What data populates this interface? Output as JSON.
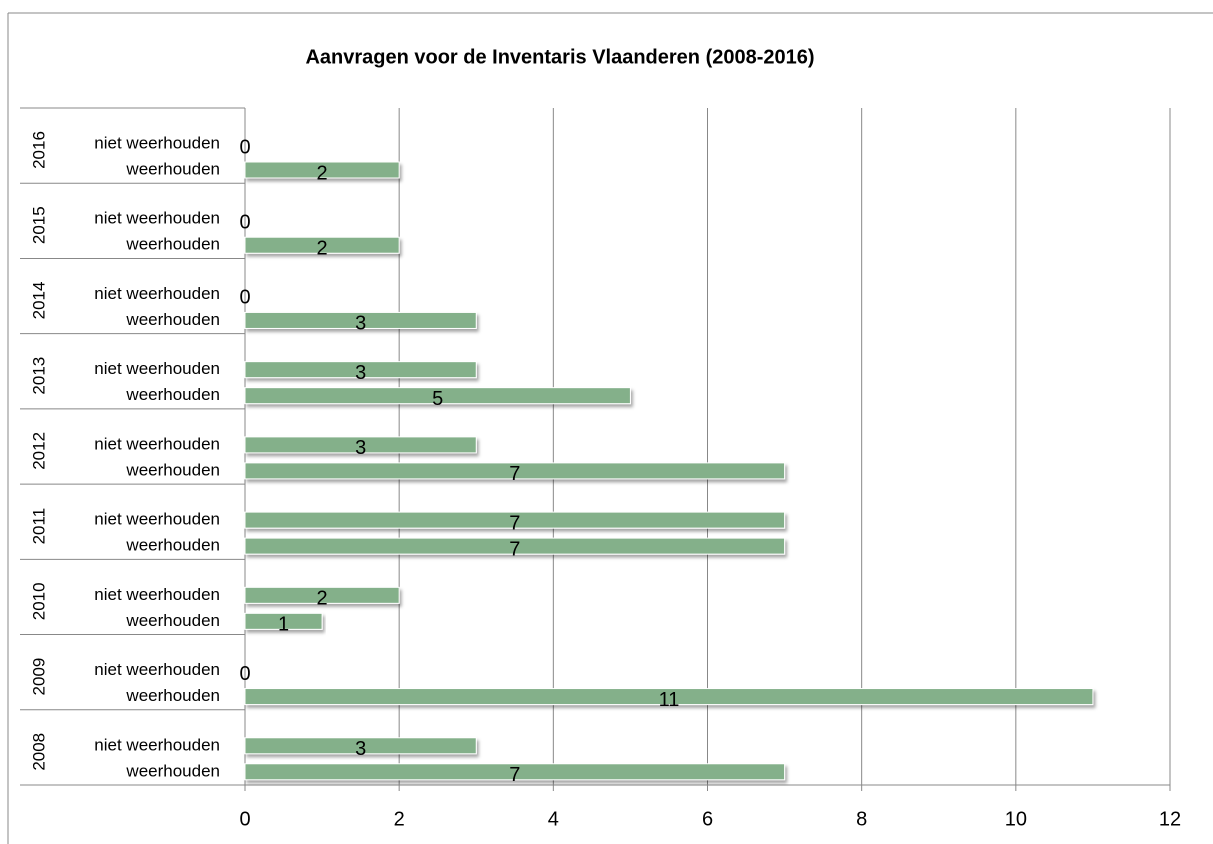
{
  "chart_data": {
    "type": "bar",
    "orientation": "horizontal",
    "title": "Aanvragen voor de Inventaris Vlaanderen (2008-2016)",
    "color": "#84b08a",
    "groups": [
      {
        "label": "2016",
        "categories": [
          "niet weerhouden",
          "weerhouden"
        ],
        "values": [
          0,
          2
        ]
      },
      {
        "label": "2015",
        "categories": [
          "niet weerhouden",
          "weerhouden"
        ],
        "values": [
          0,
          2
        ]
      },
      {
        "label": "2014",
        "categories": [
          "niet weerhouden",
          "weerhouden"
        ],
        "values": [
          0,
          3
        ]
      },
      {
        "label": "2013",
        "categories": [
          "niet weerhouden",
          "weerhouden"
        ],
        "values": [
          3,
          5
        ]
      },
      {
        "label": "2012",
        "categories": [
          "niet weerhouden",
          "weerhouden"
        ],
        "values": [
          3,
          7
        ]
      },
      {
        "label": "2011",
        "categories": [
          "niet weerhouden",
          "weerhouden"
        ],
        "values": [
          7,
          7
        ]
      },
      {
        "label": "2010",
        "categories": [
          "niet weerhouden",
          "weerhouden"
        ],
        "values": [
          2,
          1
        ]
      },
      {
        "label": "2009",
        "categories": [
          "niet weerhouden",
          "weerhouden"
        ],
        "values": [
          0,
          11
        ]
      },
      {
        "label": "2008",
        "categories": [
          "niet weerhouden",
          "weerhouden"
        ],
        "values": [
          3,
          7
        ]
      }
    ],
    "xlim": [
      0,
      12
    ],
    "xticks": [
      0,
      2,
      4,
      6,
      8,
      10,
      12
    ],
    "grid": true,
    "data_labels": true
  }
}
